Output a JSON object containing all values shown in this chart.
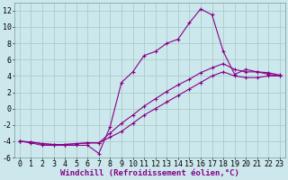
{
  "background_color": "#cce8ec",
  "grid_color": "#aacccc",
  "line_color": "#880088",
  "xlabel": "Windchill (Refroidissement éolien,°C)",
  "xlim": [
    -0.5,
    23.5
  ],
  "ylim": [
    -6,
    13
  ],
  "yticks": [
    -6,
    -4,
    -2,
    0,
    2,
    4,
    6,
    8,
    10,
    12
  ],
  "xticks": [
    0,
    1,
    2,
    3,
    4,
    5,
    6,
    7,
    8,
    9,
    10,
    11,
    12,
    13,
    14,
    15,
    16,
    17,
    18,
    19,
    20,
    21,
    22,
    23
  ],
  "line1_x": [
    0,
    1,
    2,
    3,
    4,
    5,
    6,
    7,
    8,
    9,
    10,
    11,
    12,
    13,
    14,
    15,
    16,
    17,
    18,
    19,
    20,
    21,
    22,
    23
  ],
  "line1_y": [
    -4.0,
    -4.2,
    -4.5,
    -4.5,
    -4.5,
    -4.5,
    -4.5,
    -5.5,
    -2.2,
    3.2,
    4.5,
    6.5,
    7.0,
    8.0,
    8.5,
    10.5,
    12.2,
    11.5,
    7.0,
    4.2,
    4.8,
    4.5,
    4.2,
    4.0
  ],
  "line2_x": [
    0,
    1,
    2,
    3,
    4,
    5,
    6,
    7,
    8,
    9,
    10,
    11,
    12,
    13,
    14,
    15,
    16,
    17,
    18,
    19,
    20,
    21,
    22,
    23
  ],
  "line2_y": [
    -4.0,
    -4.1,
    -4.3,
    -4.4,
    -4.4,
    -4.3,
    -4.2,
    -4.2,
    -3.0,
    -1.8,
    -0.8,
    0.3,
    1.2,
    2.1,
    2.9,
    3.6,
    4.4,
    5.0,
    5.5,
    4.8,
    4.5,
    4.5,
    4.4,
    4.1
  ],
  "line3_x": [
    0,
    1,
    2,
    3,
    4,
    5,
    6,
    7,
    8,
    9,
    10,
    11,
    12,
    13,
    14,
    15,
    16,
    17,
    18,
    19,
    20,
    21,
    22,
    23
  ],
  "line3_y": [
    -4.0,
    -4.1,
    -4.3,
    -4.4,
    -4.4,
    -4.3,
    -4.2,
    -4.2,
    -3.5,
    -2.8,
    -1.8,
    -0.8,
    0.0,
    0.8,
    1.6,
    2.4,
    3.2,
    4.0,
    4.5,
    4.0,
    3.8,
    3.8,
    4.0,
    4.0
  ],
  "xlabel_fontsize": 6.5,
  "tick_fontsize": 6.0
}
